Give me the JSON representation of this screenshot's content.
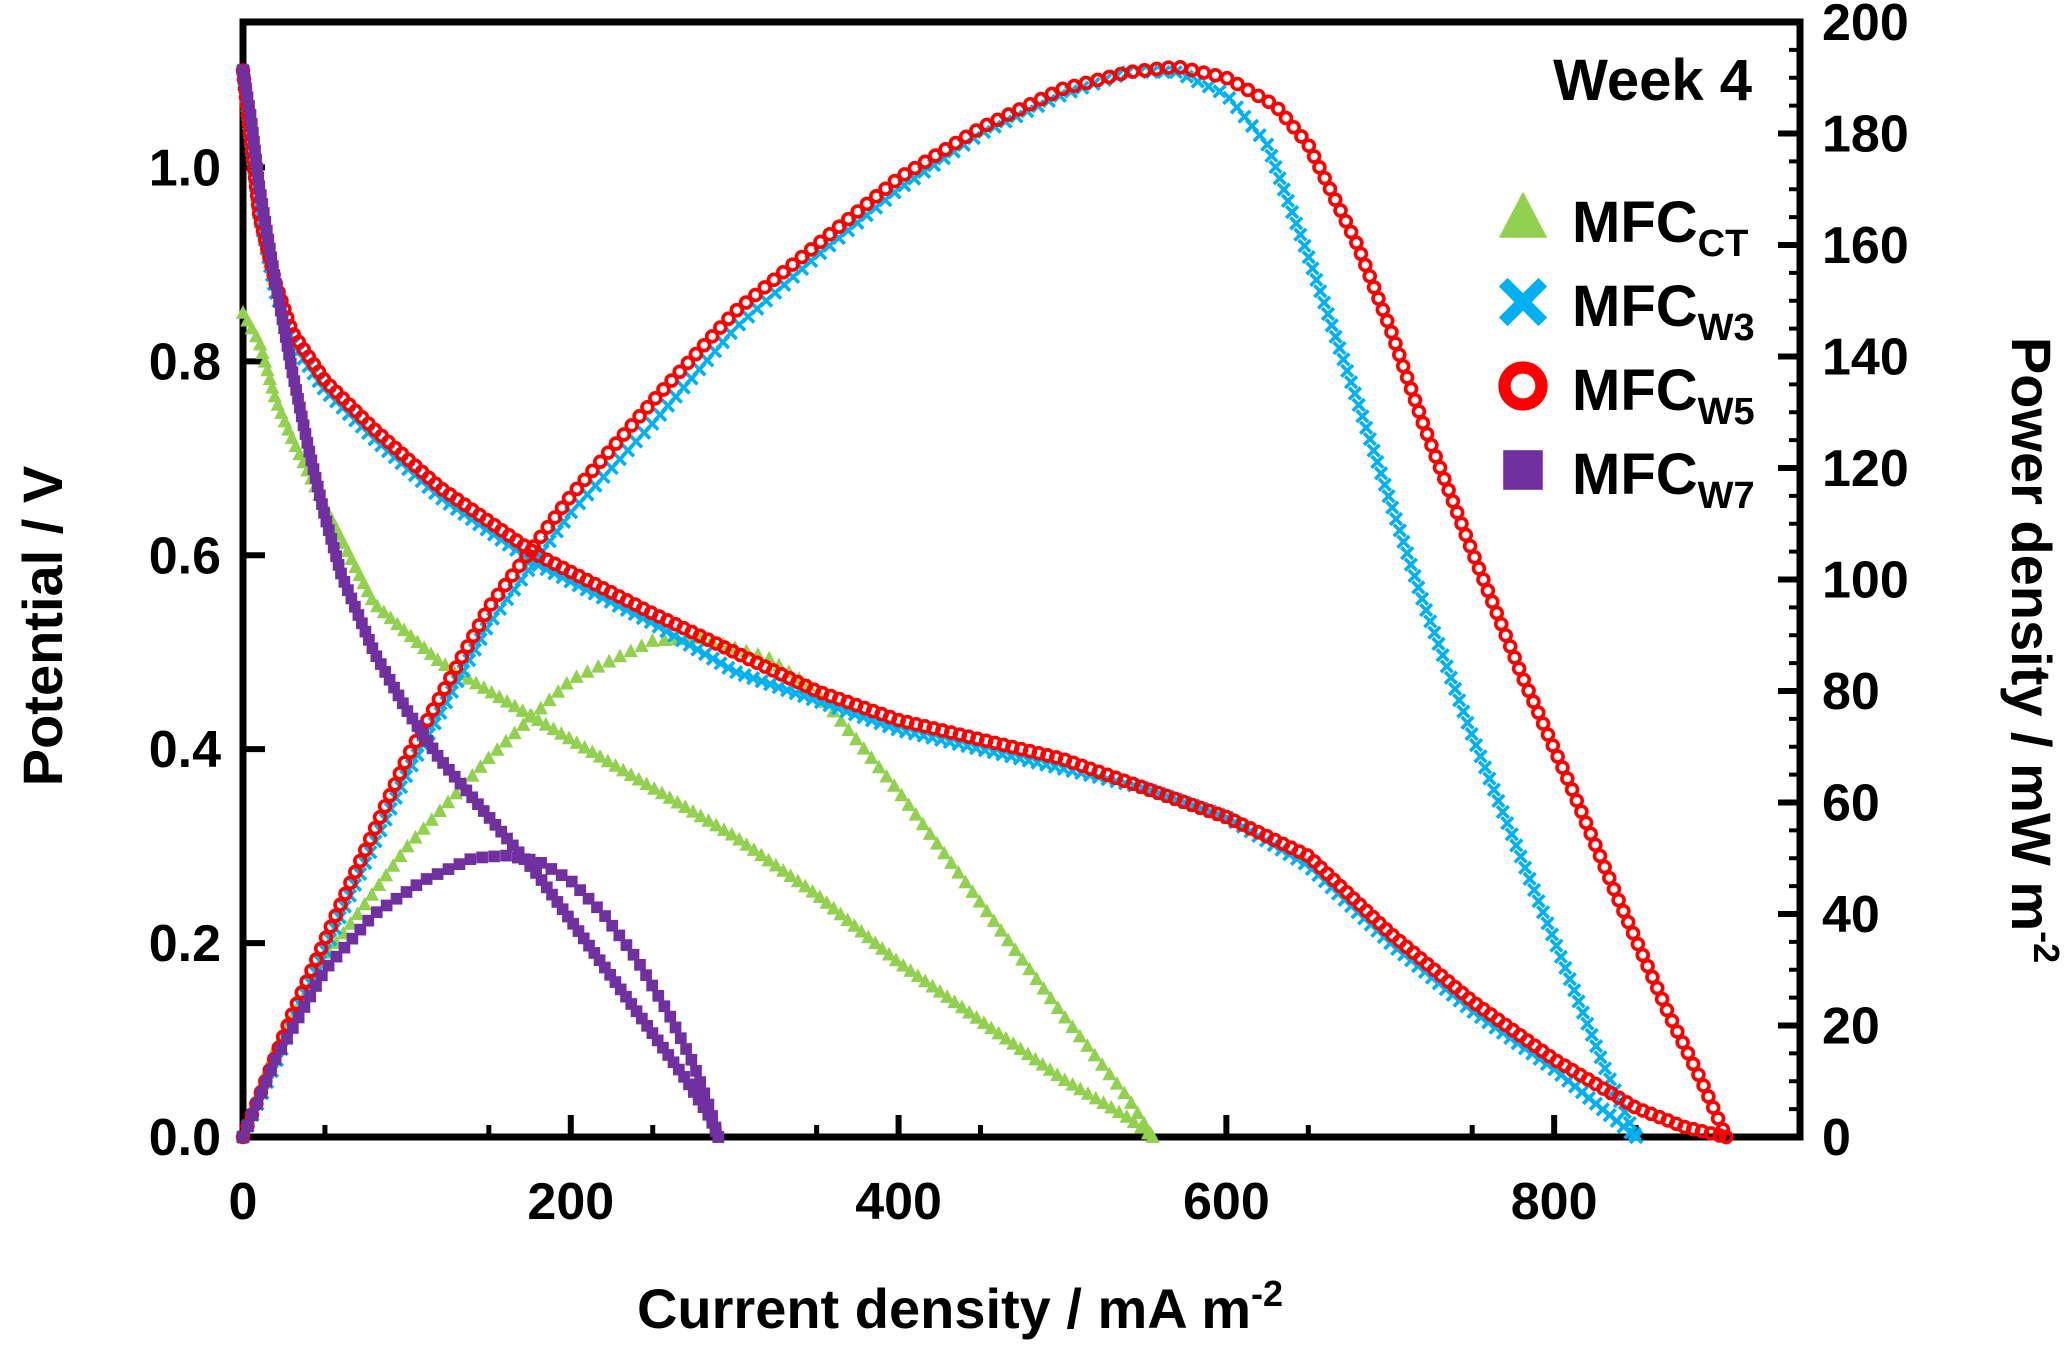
{
  "chart_data": {
    "type": "scatter",
    "title": "",
    "annotation": "Week 4",
    "xlabel": "Current density / mA m",
    "xlabel_sup": "-2",
    "ylabel": "Potential / V",
    "y2label": "Power density / mW m",
    "y2label_sup": "-2",
    "xlim": [
      0,
      950
    ],
    "ylim": [
      0,
      1.15
    ],
    "y2lim": [
      0,
      200
    ],
    "xticks": [
      "0",
      "200",
      "400",
      "600",
      "800"
    ],
    "yticks": [
      "0.0",
      "0.2",
      "0.4",
      "0.6",
      "0.8",
      "1.0"
    ],
    "y2ticks": [
      "0",
      "20",
      "40",
      "60",
      "80",
      "100",
      "120",
      "140",
      "160",
      "180",
      "200"
    ],
    "x_tick_values": [
      0,
      200,
      400,
      600,
      800
    ],
    "y_tick_values": [
      0,
      0.2,
      0.4,
      0.6,
      0.8,
      1.0
    ],
    "y2_tick_values": [
      0,
      20,
      40,
      60,
      80,
      100,
      120,
      140,
      160,
      180,
      200
    ],
    "legend_position": "top-right",
    "series": [
      {
        "name": "MFC",
        "sub": "CT",
        "marker": "triangle",
        "color": "#92D050",
        "polarization": {
          "x": [
            0,
            10,
            20,
            30,
            50,
            80,
            120,
            180,
            250,
            300,
            350,
            400,
            450,
            500,
            540,
            555
          ],
          "y": [
            0.85,
            0.82,
            0.76,
            0.72,
            0.65,
            0.55,
            0.49,
            0.43,
            0.36,
            0.31,
            0.25,
            0.18,
            0.12,
            0.06,
            0.02,
            0.0
          ]
        },
        "power": {
          "x": [
            0,
            20,
            50,
            100,
            150,
            200,
            250,
            280,
            320,
            350,
            400,
            450,
            500,
            540,
            555
          ],
          "y": [
            0,
            16,
            32,
            52,
            68,
            82,
            89,
            89.5,
            86,
            80,
            62,
            42,
            22,
            7,
            0
          ]
        }
      },
      {
        "name": "MFC",
        "sub": "W3",
        "marker": "cross",
        "color": "#00B0F0",
        "polarization": {
          "x": [
            0,
            10,
            20,
            30,
            50,
            80,
            120,
            180,
            250,
            300,
            350,
            400,
            450,
            500,
            550,
            600,
            650,
            700,
            750,
            800,
            850
          ],
          "y": [
            1.1,
            0.95,
            0.87,
            0.82,
            0.77,
            0.72,
            0.66,
            0.59,
            0.53,
            0.48,
            0.45,
            0.42,
            0.4,
            0.38,
            0.36,
            0.33,
            0.28,
            0.2,
            0.13,
            0.07,
            0.0
          ]
        },
        "power": {
          "x": [
            0,
            30,
            60,
            100,
            150,
            200,
            250,
            300,
            350,
            400,
            450,
            500,
            540,
            570,
            600,
            625,
            650,
            680,
            700,
            720,
            750,
            780,
            810,
            830,
            850
          ],
          "y": [
            0,
            20,
            40,
            65,
            92,
            112,
            128,
            145,
            158,
            170,
            180,
            187,
            191,
            191,
            187,
            178,
            158,
            132,
            114,
            96,
            72,
            50,
            28,
            13,
            0
          ]
        }
      },
      {
        "name": "MFC",
        "sub": "W5",
        "marker": "circle",
        "color": "#FF0000",
        "polarization": {
          "x": [
            0,
            10,
            20,
            30,
            50,
            80,
            120,
            180,
            250,
            300,
            350,
            400,
            450,
            500,
            550,
            600,
            650,
            700,
            750,
            800,
            850,
            880,
            905
          ],
          "y": [
            1.1,
            0.95,
            0.88,
            0.83,
            0.78,
            0.73,
            0.67,
            0.6,
            0.54,
            0.5,
            0.46,
            0.43,
            0.41,
            0.39,
            0.36,
            0.33,
            0.29,
            0.21,
            0.14,
            0.08,
            0.03,
            0.01,
            0.0
          ]
        },
        "power": {
          "x": [
            0,
            30,
            60,
            100,
            150,
            200,
            250,
            300,
            350,
            400,
            450,
            500,
            540,
            570,
            600,
            630,
            650,
            680,
            700,
            720,
            750,
            780,
            810,
            840,
            870,
            890,
            905
          ],
          "y": [
            0,
            22,
            42,
            68,
            95,
            115,
            132,
            148,
            160,
            172,
            181,
            188,
            191,
            192,
            190,
            185,
            178,
            160,
            145,
            128,
            105,
            83,
            63,
            42,
            22,
            10,
            0
          ]
        }
      },
      {
        "name": "MFC",
        "sub": "W7",
        "marker": "square",
        "color": "#7030A0",
        "polarization": {
          "x": [
            0,
            5,
            10,
            20,
            30,
            40,
            50,
            60,
            80,
            100,
            120,
            150,
            180,
            210,
            240,
            270,
            285,
            290
          ],
          "y": [
            1.1,
            1.05,
            0.98,
            0.88,
            0.79,
            0.71,
            0.64,
            0.58,
            0.5,
            0.44,
            0.39,
            0.33,
            0.27,
            0.2,
            0.13,
            0.06,
            0.02,
            0.0
          ]
        },
        "power": {
          "x": [
            0,
            20,
            50,
            80,
            110,
            140,
            160,
            180,
            200,
            220,
            240,
            260,
            275,
            285,
            290
          ],
          "y": [
            0,
            14,
            30,
            40,
            46,
            50,
            50.5,
            49.5,
            46,
            40,
            32,
            22,
            13,
            5,
            0
          ]
        }
      }
    ]
  }
}
